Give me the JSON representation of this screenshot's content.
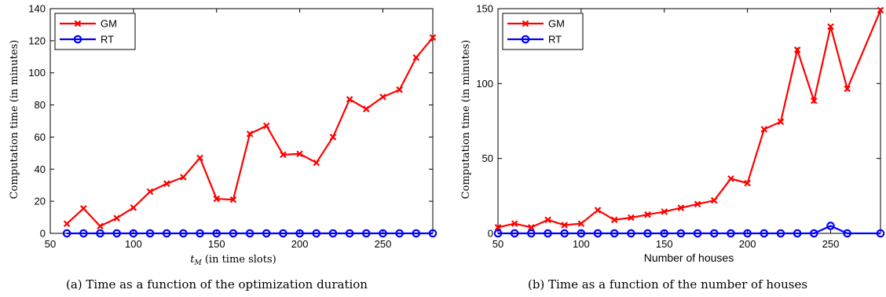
{
  "chart_data": [
    {
      "type": "line",
      "caption": "(a) Time as a function of the optimization duration",
      "xlabel_main": "t",
      "xlabel_sub": "M",
      "xlabel_rest": " (in time slots)",
      "ylabel": "Computation time (in minutes)",
      "xlim": [
        50,
        280
      ],
      "ylim": [
        0,
        140
      ],
      "xticks": [
        50,
        100,
        150,
        200,
        250
      ],
      "yticks": [
        0,
        20,
        40,
        60,
        80,
        100,
        120,
        140
      ],
      "x": [
        60,
        70,
        80,
        90,
        100,
        110,
        120,
        130,
        140,
        150,
        160,
        170,
        180,
        190,
        200,
        210,
        220,
        230,
        240,
        250,
        260,
        270,
        280
      ],
      "series": [
        {
          "name": "GM",
          "color": "#ff0000",
          "marker": "x",
          "values": [
            6,
            15.5,
            4.5,
            9.5,
            16,
            26,
            31,
            35,
            47,
            21.5,
            21,
            62,
            67,
            49,
            49.5,
            44,
            60,
            83.5,
            77.5,
            85,
            89.5,
            109.5,
            122
          ]
        },
        {
          "name": "RT",
          "color": "#0000ff",
          "marker": "o",
          "values": [
            0,
            0,
            0,
            0,
            0,
            0,
            0,
            0,
            0,
            0,
            0,
            0,
            0,
            0,
            0,
            0,
            0,
            0,
            0,
            0,
            0,
            0,
            0
          ]
        }
      ],
      "legend": "top-left",
      "grid": false
    },
    {
      "type": "line",
      "caption": "(b) Time as a function of the number of houses",
      "xlabel": "Number of houses",
      "ylabel": "Computation time (in minutes)",
      "xlim": [
        50,
        280
      ],
      "ylim": [
        0,
        150
      ],
      "xticks": [
        50,
        100,
        150,
        200,
        250
      ],
      "yticks": [
        0,
        50,
        100,
        150
      ],
      "x": [
        50,
        60,
        70,
        80,
        90,
        100,
        110,
        120,
        130,
        140,
        150,
        160,
        170,
        180,
        190,
        200,
        210,
        220,
        230,
        240,
        250,
        260,
        280
      ],
      "series": [
        {
          "name": "GM",
          "color": "#ff0000",
          "marker": "x",
          "values": [
            4,
            6.5,
            4,
            9,
            5.5,
            6.5,
            15.5,
            9,
            10.5,
            12.5,
            14.5,
            17,
            19.5,
            22,
            36.5,
            33.5,
            69.5,
            74.5,
            122.5,
            88.5,
            138,
            96.5,
            149
          ]
        },
        {
          "name": "RT",
          "color": "#0000ff",
          "marker": "o",
          "values": [
            0,
            0,
            0,
            0,
            0,
            0,
            0,
            0,
            0,
            0,
            0,
            0,
            0,
            0,
            0,
            0,
            0,
            0,
            0,
            0,
            5,
            0,
            0
          ]
        }
      ],
      "legend": "top-left",
      "grid": false
    }
  ]
}
